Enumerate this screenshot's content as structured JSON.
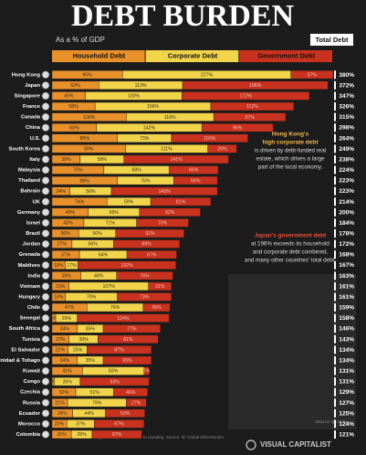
{
  "chart_data": {
    "type": "stacked-bar-horizontal",
    "title": "DEBT BURDEN",
    "subtitle": "As a % of GDP",
    "total_header": "Total Debt",
    "categories": [
      "Hong Kong",
      "Japan",
      "Singapore",
      "France",
      "Canada",
      "China",
      "U.S.",
      "South Korea",
      "Italy",
      "Malaysia",
      "Thailand",
      "Bahrain",
      "UK",
      "Germany",
      "Israel",
      "Brazil",
      "Jordan",
      "Grenada",
      "Maldives",
      "India",
      "Vietnam",
      "Hungary",
      "Chile",
      "Senegal",
      "South Africa",
      "Tunisia",
      "El Salvador",
      "Trinidad & Tobago",
      "Kuwait",
      "Congo",
      "Czechia",
      "Russia",
      "Ecuador",
      "Morocco",
      "Colombia"
    ],
    "series": [
      {
        "name": "Household Debt",
        "color": "#e8902a",
        "values": [
          95,
          63,
          45,
          58,
          100,
          60,
          88,
          99,
          38,
          70,
          88,
          24,
          74,
          49,
          43,
          36,
          27,
          37,
          18,
          39,
          23,
          18,
          47,
          5,
          34,
          23,
          22,
          34,
          41,
          3,
          32,
          21,
          28,
          20,
          26
        ],
        "value_labels": [
          "95%",
          "63%",
          "45%",
          "58%",
          "100%",
          "60%",
          "88%",
          "99%",
          "38%",
          "70%",
          "88%",
          "24%",
          "74%",
          "49%",
          "43%",
          "36%",
          "27%",
          "37%",
          "18%",
          "39%",
          "23%",
          "18%",
          "47%",
          "5%",
          "34%",
          "23%",
          "22%",
          "34%",
          "41%",
          "3%",
          "32%",
          "21%",
          "28%",
          "20%",
          "26%"
        ]
      },
      {
        "name": "Corporate Debt",
        "color": "#f2d44a",
        "values": [
          227,
          113,
          130,
          156,
          118,
          142,
          73,
          111,
          59,
          88,
          76,
          56,
          59,
          69,
          71,
          50,
          56,
          64,
          17,
          48,
          107,
          70,
          76,
          29,
          35,
          39,
          25,
          35,
          83,
          35,
          51,
          79,
          44,
          37,
          28
        ],
        "value_labels": [
          "227%",
          "113%",
          "130%",
          "156%",
          "118%",
          "142%",
          "73%",
          "111%",
          "59%",
          "88%",
          "76%",
          "56%",
          "59%",
          "69%",
          "71%",
          "50%",
          "56%",
          "64%",
          "17%",
          "48%",
          "107%",
          "70%",
          "76%",
          "29%",
          "35%",
          "39%",
          "25%",
          "35%",
          "83%",
          "35%",
          "51%",
          "79%",
          "44%",
          "37%",
          "28%"
        ]
      },
      {
        "name": "Government Debt",
        "color": "#c8321e",
        "values": [
          57,
          196,
          172,
          112,
          97,
          96,
          103,
          39,
          141,
          66,
          59,
          143,
          81,
          82,
          70,
          92,
          89,
          67,
          132,
          76,
          31,
          73,
          36,
          124,
          77,
          81,
          87,
          65,
          7,
          93,
          46,
          27,
          53,
          67,
          67
        ],
        "value_labels": [
          "57%",
          "196%",
          "172%",
          "112%",
          "97%",
          "96%",
          "103%",
          "39%",
          "141%",
          "66%",
          "59%",
          "143%",
          "81%",
          "82%",
          "70%",
          "92%",
          "89%",
          "67%",
          "132%",
          "76%",
          "31%",
          "73%",
          "36%",
          "124%",
          "77%",
          "81%",
          "87%",
          "65%",
          "7%",
          "93%",
          "46%",
          "27%",
          "53%",
          "67%",
          "67%"
        ]
      }
    ],
    "totals": [
      380,
      372,
      347,
      326,
      315,
      298,
      264,
      249,
      238,
      224,
      223,
      223,
      214,
      200,
      184,
      178,
      172,
      168,
      167,
      163,
      161,
      161,
      159,
      158,
      146,
      143,
      134,
      134,
      131,
      131,
      129,
      127,
      125,
      124,
      121
    ],
    "total_labels": [
      "380%",
      "372%",
      "347%",
      "326%",
      "315%",
      "298%",
      "264%",
      "249%",
      "238%",
      "224%",
      "223%",
      "223%",
      "214%",
      "200%",
      "184%",
      "178%",
      "172%",
      "168%",
      "167%",
      "163%",
      "161%",
      "161%",
      "159%",
      "158%",
      "146%",
      "143%",
      "134%",
      "134%",
      "131%",
      "131%",
      "129%",
      "127%",
      "125%",
      "124%",
      "121%"
    ],
    "annotations": [
      {
        "highlight": [
          "Hong Kong's",
          "high corporate debt"
        ],
        "text": [
          "is driven by debt-funded real",
          "estate, which drives a large",
          "part of the local economy."
        ]
      },
      {
        "highlight": [
          "Japan's government debt"
        ],
        "text": [
          "at 196% exceeds its household",
          "and corporate debt combined,",
          "and many other countries' total debt."
        ]
      }
    ],
    "note": "Figures may not sum due to rounding. Source: IIF Global Debt Monitor",
    "date_note": "Data for Q4 2023",
    "brand": "VISUAL CAPITALIST"
  }
}
